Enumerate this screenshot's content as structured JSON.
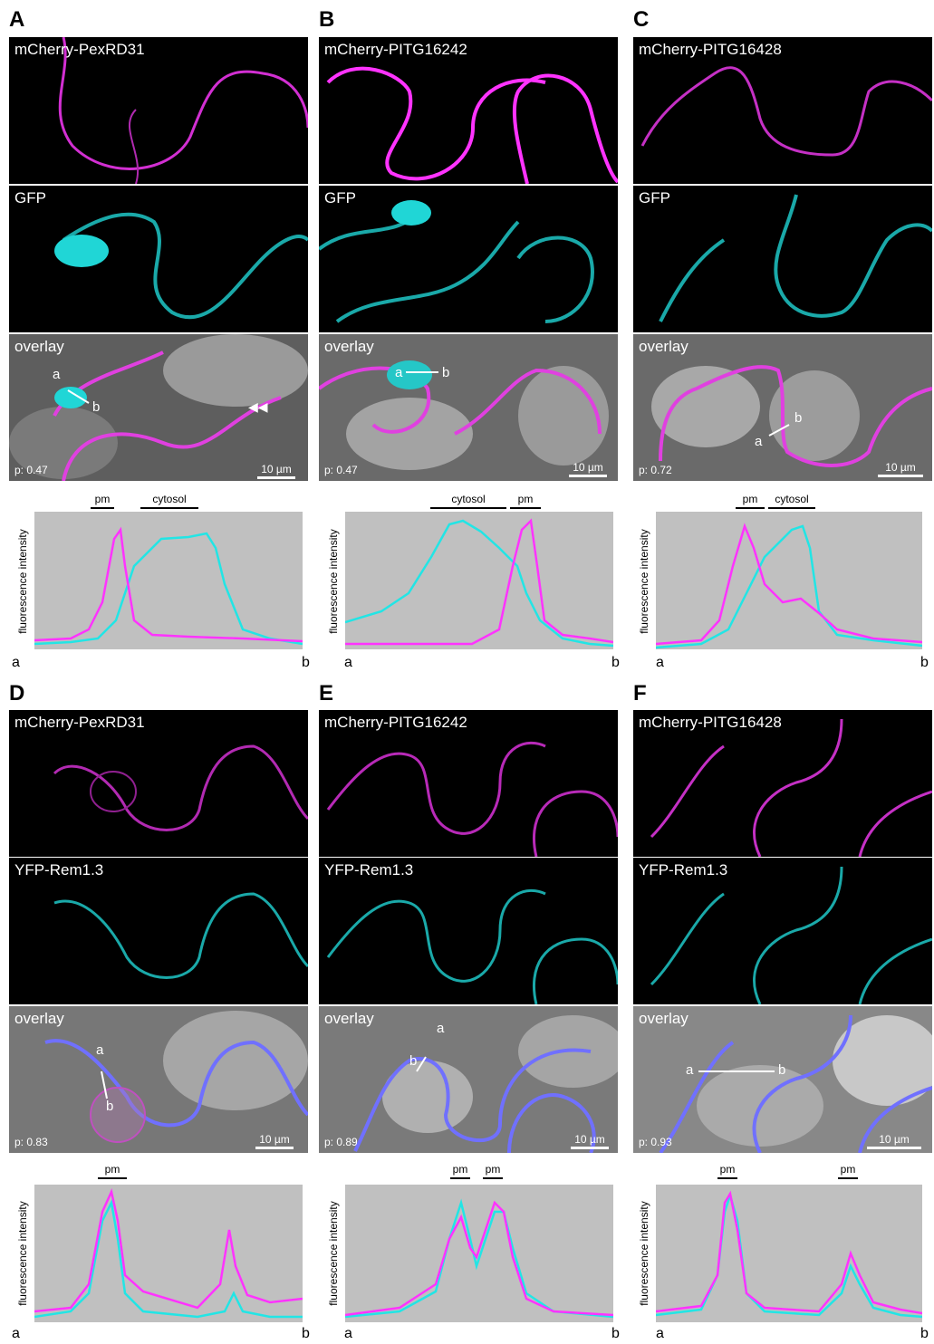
{
  "figure": {
    "panels": [
      {
        "letter": "A",
        "row_labels": [
          "mCherry-PexRD31",
          "GFP",
          "overlay"
        ],
        "p_value": "p: 0.47",
        "scale_label": "10 µm",
        "regions": [
          {
            "label": "pm"
          },
          {
            "label": "cytosol"
          }
        ],
        "ylabel": "fluorescence intensity",
        "xstart": "a",
        "xend": "b",
        "line_a": "a",
        "line_b": "b"
      },
      {
        "letter": "B",
        "row_labels": [
          "mCherry-PITG16242",
          "GFP",
          "overlay"
        ],
        "p_value": "p: 0.47",
        "scale_label": "10 µm",
        "regions": [
          {
            "label": "cytosol"
          },
          {
            "label": "pm"
          }
        ],
        "ylabel": "fluorescence intensity",
        "xstart": "a",
        "xend": "b",
        "line_a": "a",
        "line_b": "b"
      },
      {
        "letter": "C",
        "row_labels": [
          "mCherry-PITG16428",
          "GFP",
          "overlay"
        ],
        "p_value": "p: 0.72",
        "scale_label": "10 µm",
        "regions": [
          {
            "label": "pm"
          },
          {
            "label": "cytosol"
          }
        ],
        "ylabel": "fluorescence intensity",
        "xstart": "a",
        "xend": "b",
        "line_a": "a",
        "line_b": "b"
      },
      {
        "letter": "D",
        "row_labels": [
          "mCherry-PexRD31",
          "YFP-Rem1.3",
          "overlay"
        ],
        "p_value": "p: 0.83",
        "scale_label": "10 µm",
        "regions": [
          {
            "label": "pm"
          }
        ],
        "ylabel": "fluorescence intensity",
        "xstart": "a",
        "xend": "b",
        "line_a": "a",
        "line_b": "b"
      },
      {
        "letter": "E",
        "row_labels": [
          "mCherry-PITG16242",
          "YFP-Rem1.3",
          "overlay"
        ],
        "p_value": "p: 0.89",
        "scale_label": "10 µm",
        "regions": [
          {
            "label": "pm"
          },
          {
            "label": "pm"
          }
        ],
        "ylabel": "fluorescence intensity",
        "xstart": "a",
        "xend": "b",
        "line_a": "a",
        "line_b": "b"
      },
      {
        "letter": "F",
        "row_labels": [
          "mCherry-PITG16428",
          "YFP-Rem1.3",
          "overlay"
        ],
        "p_value": "p: 0.93",
        "scale_label": "10 µm",
        "regions": [
          {
            "label": "pm"
          },
          {
            "label": "pm"
          }
        ],
        "ylabel": "fluorescence intensity",
        "xstart": "a",
        "xend": "b",
        "line_a": "a",
        "line_b": "b"
      }
    ],
    "colors": {
      "mcherry": "#ff33ff",
      "gfp": "#22e5e5",
      "plot_bg": "#c0c0c0",
      "overlay_membrane": "#7070ff"
    }
  }
}
